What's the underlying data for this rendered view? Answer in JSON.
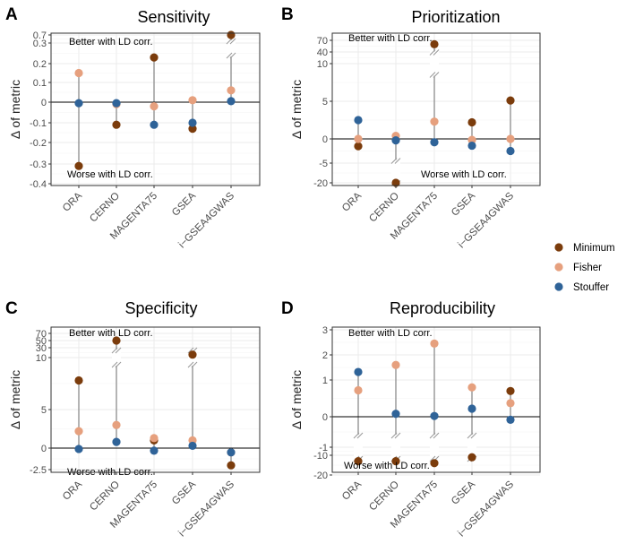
{
  "legend": {
    "entries": [
      {
        "name": "Minimum",
        "color": "#7b3c0c"
      },
      {
        "name": "Fisher",
        "color": "#e6a07e"
      },
      {
        "name": "Stouffer",
        "color": "#2f6398"
      }
    ]
  },
  "chart_data": [
    {
      "letter": "A",
      "type": "scatter",
      "title": "Sensitivity",
      "ylabel": "Δ of metric",
      "categories": [
        "ORA",
        "CERNO",
        "MAGENTA75",
        "GSEA",
        "i−GSEA4GWAS"
      ],
      "tick_labels": [
        "0.7",
        "0.3",
        "0.2",
        "0.1",
        "0",
        "-0.1",
        "-0.2",
        "-0.3",
        "-0.4"
      ],
      "axis_break_between": [
        "0.3",
        "0.7"
      ],
      "series": [
        {
          "name": "Minimum",
          "values": [
            -0.31,
            -0.11,
            0.23,
            -0.13,
            0.7
          ]
        },
        {
          "name": "Fisher",
          "values": [
            0.15,
            -0.01,
            -0.02,
            0.01,
            0.06
          ]
        },
        {
          "name": "Stouffer",
          "values": [
            -0.005,
            -0.005,
            -0.11,
            -0.1,
            0.005
          ]
        }
      ],
      "broken_segments": [
        "i−GSEA4GWAS"
      ],
      "annotation_top": "Better with LD corr.",
      "annotation_bottom": "Worse with LD corr."
    },
    {
      "letter": "B",
      "type": "scatter",
      "title": "Prioritization",
      "ylabel": "Δ of metric",
      "categories": [
        "ORA",
        "CERNO",
        "MAGENTA75",
        "GSEA",
        "i−GSEA4GWAS"
      ],
      "tick_labels": [
        "70",
        "40",
        "10",
        "5",
        "0",
        "-5",
        "-20"
      ],
      "axis_break_between": [
        "10",
        "40"
      ],
      "series": [
        {
          "name": "Minimum",
          "values": [
            -1.5,
            -20,
            60,
            2.2,
            5.1
          ]
        },
        {
          "name": "Fisher",
          "values": [
            0,
            0.4,
            2.3,
            -0.2,
            0
          ]
        },
        {
          "name": "Stouffer",
          "values": [
            2.5,
            -0.3,
            -0.7,
            -1.4,
            -2.5
          ]
        }
      ],
      "broken_segments": [
        "CERNO",
        "MAGENTA75"
      ],
      "annotation_top": "Better with LD corr.",
      "annotation_bottom": "Worse with LD corr."
    },
    {
      "letter": "C",
      "type": "scatter",
      "title": "Specificity",
      "ylabel": "Δ of metric",
      "categories": [
        "ORA",
        "CERNO",
        "MAGENTA75",
        "GSEA",
        "i−GSEA4GWAS"
      ],
      "tick_labels": [
        "70",
        "50",
        "30",
        "10",
        "5",
        "0",
        "-2.5"
      ],
      "axis_break_between": [
        "10",
        "30"
      ],
      "series": [
        {
          "name": "Minimum",
          "values": [
            7.8,
            50,
            1.0,
            16,
            -2
          ]
        },
        {
          "name": "Fisher",
          "values": [
            2.2,
            3.0,
            1.3,
            1.0,
            -0.5
          ]
        },
        {
          "name": "Stouffer",
          "values": [
            -0.1,
            0.8,
            -0.3,
            0.3,
            -0.5
          ]
        }
      ],
      "broken_segments": [
        "CERNO",
        "GSEA"
      ],
      "annotation_top": "Better with LD corr.",
      "annotation_bottom": "Worse with LD corr."
    },
    {
      "letter": "D",
      "type": "scatter",
      "title": "Reproducibility",
      "ylabel": "Δ of metric",
      "categories": [
        "ORA",
        "CERNO",
        "MAGENTA75",
        "GSEA",
        "i−GSEA4GWAS"
      ],
      "tick_labels": [
        "3",
        "2",
        "1",
        "0",
        "-1",
        "-10",
        "-20"
      ],
      "axis_break_between": [
        "-1",
        "-10"
      ],
      "series": [
        {
          "name": "Minimum",
          "values": [
            -13,
            -13,
            -14,
            -11,
            0.7
          ]
        },
        {
          "name": "Fisher",
          "values": [
            0.72,
            1.6,
            2.45,
            0.8,
            0.37
          ]
        },
        {
          "name": "Stouffer",
          "values": [
            1.32,
            0.08,
            0.02,
            0.22,
            -0.1
          ]
        }
      ],
      "broken_segments": [
        "ORA",
        "CERNO",
        "MAGENTA75",
        "GSEA"
      ],
      "annotation_top": "Better with LD corr.",
      "annotation_bottom": "Worse with LD corr."
    }
  ]
}
